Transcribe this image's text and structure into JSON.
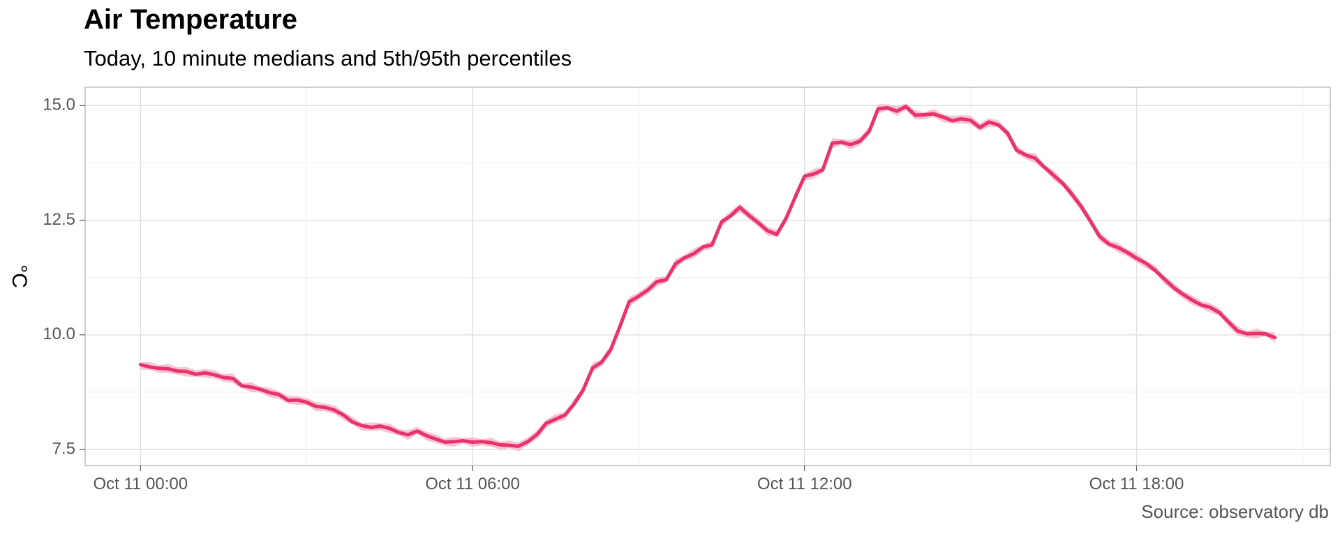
{
  "chart_data": {
    "type": "line",
    "title": "Air Temperature",
    "subtitle": "Today, 10 minute medians and 5th/95th percentiles",
    "ylabel": "°C",
    "xlabel": "",
    "caption": "Source: observatory db",
    "x_ticks": [
      {
        "hour": 0,
        "label": "Oct 11 00:00"
      },
      {
        "hour": 6,
        "label": "Oct 11 06:00"
      },
      {
        "hour": 12,
        "label": "Oct 11 12:00"
      },
      {
        "hour": 18,
        "label": "Oct 11 18:00"
      }
    ],
    "y_ticks": [
      {
        "value": 7.5,
        "label": "7.5"
      },
      {
        "value": 10.0,
        "label": "10.0"
      },
      {
        "value": 12.5,
        "label": "12.5"
      },
      {
        "value": 15.0,
        "label": "15.0"
      }
    ],
    "xlim": [
      -1.0,
      21.5
    ],
    "ylim": [
      7.15,
      15.4
    ],
    "grid": true,
    "line_color": "#e8336d",
    "band_color": "#f4b6c8",
    "series": [
      {
        "values": [
          [
            0.0,
            9.35
          ],
          [
            0.17,
            9.3
          ],
          [
            0.33,
            9.27
          ],
          [
            0.5,
            9.26
          ],
          [
            0.67,
            9.21
          ],
          [
            0.83,
            9.2
          ],
          [
            1.0,
            9.14
          ],
          [
            1.17,
            9.17
          ],
          [
            1.33,
            9.13
          ],
          [
            1.5,
            9.07
          ],
          [
            1.67,
            9.05
          ],
          [
            1.83,
            8.89
          ],
          [
            2.0,
            8.86
          ],
          [
            2.17,
            8.81
          ],
          [
            2.33,
            8.74
          ],
          [
            2.5,
            8.7
          ],
          [
            2.67,
            8.57
          ],
          [
            2.83,
            8.58
          ],
          [
            3.0,
            8.53
          ],
          [
            3.17,
            8.44
          ],
          [
            3.33,
            8.42
          ],
          [
            3.5,
            8.36
          ],
          [
            3.67,
            8.25
          ],
          [
            3.83,
            8.1
          ],
          [
            4.0,
            8.02
          ],
          [
            4.17,
            7.98
          ],
          [
            4.33,
            8.01
          ],
          [
            4.5,
            7.96
          ],
          [
            4.67,
            7.87
          ],
          [
            4.83,
            7.82
          ],
          [
            5.0,
            7.9
          ],
          [
            5.17,
            7.8
          ],
          [
            5.33,
            7.73
          ],
          [
            5.5,
            7.66
          ],
          [
            5.67,
            7.67
          ],
          [
            5.83,
            7.69
          ],
          [
            6.0,
            7.66
          ],
          [
            6.17,
            7.67
          ],
          [
            6.33,
            7.65
          ],
          [
            6.5,
            7.6
          ],
          [
            6.67,
            7.59
          ],
          [
            6.83,
            7.57
          ],
          [
            7.0,
            7.67
          ],
          [
            7.17,
            7.83
          ],
          [
            7.33,
            8.07
          ],
          [
            7.5,
            8.16
          ],
          [
            7.67,
            8.25
          ],
          [
            7.83,
            8.48
          ],
          [
            8.0,
            8.8
          ],
          [
            8.17,
            9.28
          ],
          [
            8.33,
            9.4
          ],
          [
            8.5,
            9.68
          ],
          [
            8.67,
            10.2
          ],
          [
            8.83,
            10.72
          ],
          [
            9.0,
            10.84
          ],
          [
            9.17,
            10.98
          ],
          [
            9.33,
            11.16
          ],
          [
            9.5,
            11.2
          ],
          [
            9.67,
            11.55
          ],
          [
            9.83,
            11.68
          ],
          [
            10.0,
            11.77
          ],
          [
            10.17,
            11.92
          ],
          [
            10.33,
            11.96
          ],
          [
            10.5,
            12.46
          ],
          [
            10.67,
            12.6
          ],
          [
            10.83,
            12.78
          ],
          [
            11.0,
            12.6
          ],
          [
            11.17,
            12.44
          ],
          [
            11.33,
            12.27
          ],
          [
            11.5,
            12.19
          ],
          [
            11.67,
            12.55
          ],
          [
            11.83,
            13.0
          ],
          [
            12.0,
            13.46
          ],
          [
            12.17,
            13.51
          ],
          [
            12.33,
            13.6
          ],
          [
            12.5,
            14.18
          ],
          [
            12.67,
            14.2
          ],
          [
            12.83,
            14.15
          ],
          [
            13.0,
            14.22
          ],
          [
            13.17,
            14.44
          ],
          [
            13.33,
            14.93
          ],
          [
            13.5,
            14.95
          ],
          [
            13.67,
            14.88
          ],
          [
            13.83,
            14.98
          ],
          [
            14.0,
            14.79
          ],
          [
            14.17,
            14.8
          ],
          [
            14.33,
            14.82
          ],
          [
            14.5,
            14.75
          ],
          [
            14.67,
            14.67
          ],
          [
            14.83,
            14.71
          ],
          [
            15.0,
            14.68
          ],
          [
            15.17,
            14.52
          ],
          [
            15.33,
            14.64
          ],
          [
            15.5,
            14.58
          ],
          [
            15.67,
            14.4
          ],
          [
            15.83,
            14.03
          ],
          [
            16.0,
            13.92
          ],
          [
            16.17,
            13.85
          ],
          [
            16.33,
            13.66
          ],
          [
            16.5,
            13.48
          ],
          [
            16.67,
            13.3
          ],
          [
            16.83,
            13.07
          ],
          [
            17.0,
            12.8
          ],
          [
            17.17,
            12.47
          ],
          [
            17.33,
            12.15
          ],
          [
            17.5,
            11.98
          ],
          [
            17.67,
            11.9
          ],
          [
            17.83,
            11.8
          ],
          [
            18.0,
            11.67
          ],
          [
            18.17,
            11.56
          ],
          [
            18.33,
            11.41
          ],
          [
            18.5,
            11.22
          ],
          [
            18.67,
            11.03
          ],
          [
            18.83,
            10.89
          ],
          [
            19.0,
            10.76
          ],
          [
            19.17,
            10.65
          ],
          [
            19.33,
            10.6
          ],
          [
            19.5,
            10.48
          ],
          [
            19.67,
            10.27
          ],
          [
            19.83,
            10.08
          ],
          [
            20.0,
            10.02
          ],
          [
            20.17,
            10.03
          ],
          [
            20.33,
            10.02
          ],
          [
            20.5,
            9.94
          ]
        ]
      }
    ]
  }
}
